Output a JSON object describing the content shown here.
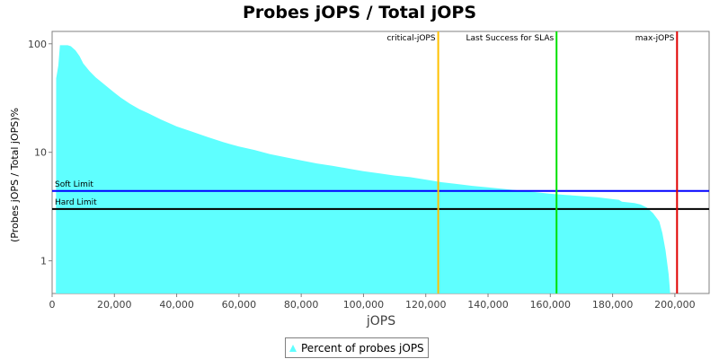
{
  "chart_data": {
    "type": "area",
    "title": "Probes jOPS / Total jOPS",
    "xlabel": "jOPS",
    "ylabel": "(Probes jOPS / Total jOPS)%",
    "xlim": [
      0,
      211000
    ],
    "ylim": [
      0.5,
      130
    ],
    "yscale": "log",
    "x_ticks": [
      0,
      20000,
      40000,
      60000,
      80000,
      100000,
      120000,
      140000,
      160000,
      180000,
      200000
    ],
    "x_tick_labels": [
      "0",
      "20,000",
      "40,000",
      "60,000",
      "80,000",
      "100,000",
      "120,000",
      "140,000",
      "160,000",
      "180,000",
      "200,000"
    ],
    "y_ticks": [
      1,
      10,
      100
    ],
    "y_tick_labels": [
      "1",
      "10",
      "100"
    ],
    "grid": false,
    "legend_position": "bottom",
    "series": [
      {
        "name": "Percent of probes jOPS",
        "color": "#5fffff",
        "points": [
          [
            1200,
            0.5
          ],
          [
            1300,
            48
          ],
          [
            2000,
            63
          ],
          [
            2500,
            97
          ],
          [
            5000,
            97
          ],
          [
            6000,
            95
          ],
          [
            7500,
            87
          ],
          [
            8800,
            77
          ],
          [
            10000,
            66
          ],
          [
            12000,
            56
          ],
          [
            14000,
            49
          ],
          [
            16000,
            44
          ],
          [
            18000,
            39.5
          ],
          [
            20000,
            35.5
          ],
          [
            22000,
            32
          ],
          [
            25000,
            28
          ],
          [
            28000,
            25
          ],
          [
            31000,
            22.8
          ],
          [
            35000,
            20
          ],
          [
            40000,
            17.3
          ],
          [
            45000,
            15.5
          ],
          [
            50000,
            13.8
          ],
          [
            55000,
            12.4
          ],
          [
            60000,
            11.3
          ],
          [
            65000,
            10.5
          ],
          [
            70000,
            9.6
          ],
          [
            75000,
            9.0
          ],
          [
            80000,
            8.4
          ],
          [
            85000,
            7.9
          ],
          [
            90000,
            7.5
          ],
          [
            95000,
            7.1
          ],
          [
            100000,
            6.7
          ],
          [
            105000,
            6.4
          ],
          [
            110000,
            6.1
          ],
          [
            115000,
            5.9
          ],
          [
            120000,
            5.6
          ],
          [
            125000,
            5.3
          ],
          [
            130000,
            5.1
          ],
          [
            135000,
            4.9
          ],
          [
            140000,
            4.75
          ],
          [
            145000,
            4.6
          ],
          [
            150000,
            4.45
          ],
          [
            155000,
            4.3
          ],
          [
            160000,
            4.15
          ],
          [
            165000,
            4.05
          ],
          [
            170000,
            3.95
          ],
          [
            175000,
            3.85
          ],
          [
            180000,
            3.7
          ],
          [
            182000,
            3.65
          ],
          [
            183000,
            3.5
          ],
          [
            187000,
            3.4
          ],
          [
            189000,
            3.3
          ],
          [
            191000,
            3.1
          ],
          [
            193000,
            2.75
          ],
          [
            195000,
            2.3
          ],
          [
            196000,
            1.8
          ],
          [
            197000,
            1.25
          ],
          [
            198000,
            0.75
          ],
          [
            198500,
            0.5
          ]
        ]
      }
    ],
    "vertical_markers": [
      {
        "label": "critical-jOPS",
        "x": 124000,
        "color": "#ffc000"
      },
      {
        "label": "Last Success for SLAs",
        "x": 162000,
        "color": "#00e000"
      },
      {
        "label": "max-jOPS",
        "x": 200700,
        "color": "#e00000"
      }
    ],
    "horizontal_markers": [
      {
        "label": "Soft Limit",
        "y": 4.4,
        "color": "#0000ff"
      },
      {
        "label": "Hard Limit",
        "y": 3.0,
        "color": "#000000"
      }
    ]
  }
}
